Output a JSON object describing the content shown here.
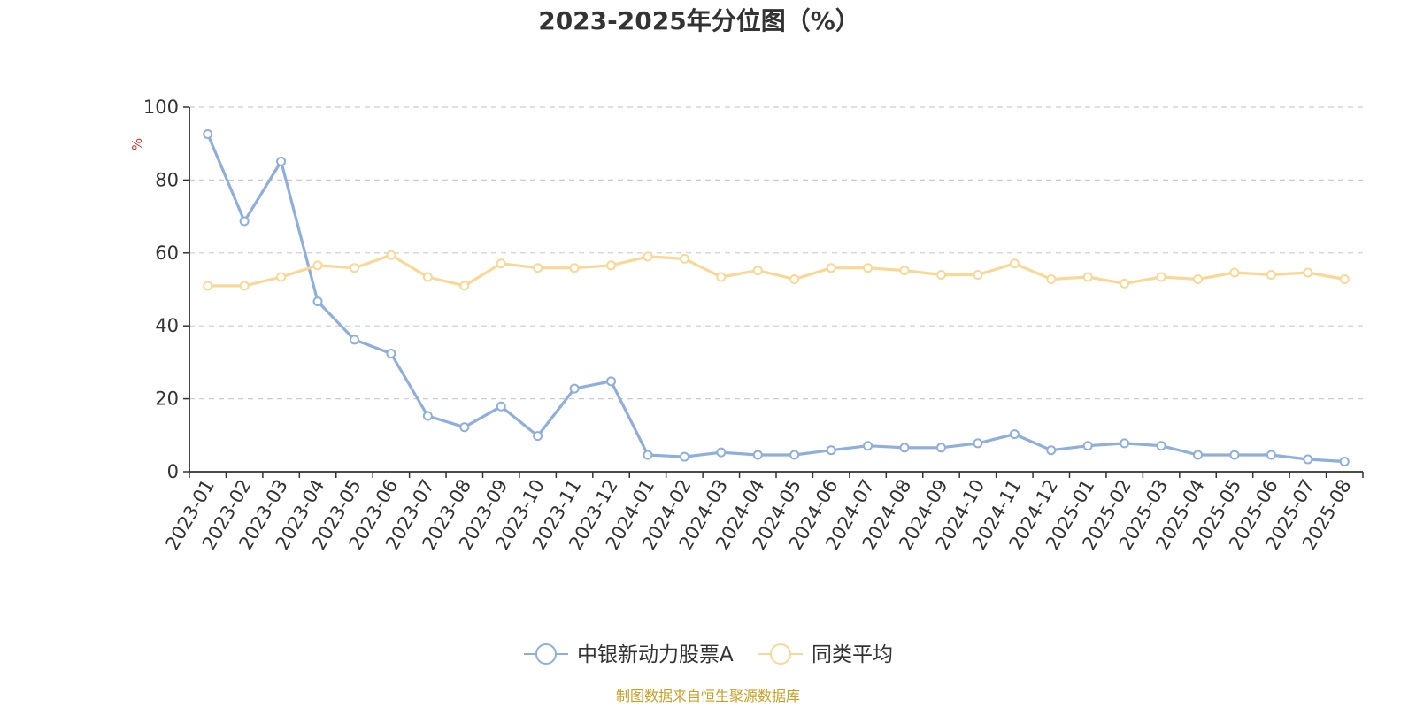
{
  "chart_data": {
    "type": "line",
    "title": "2023-2025年分位图（%）",
    "ylabel": "%",
    "ylim": [
      0,
      100
    ],
    "yticks": [
      0,
      20,
      40,
      60,
      80,
      100
    ],
    "grid": true,
    "legend_position": "bottom-center",
    "categories": [
      "2023-01",
      "2023-02",
      "2023-03",
      "2023-04",
      "2023-05",
      "2023-06",
      "2023-07",
      "2023-08",
      "2023-09",
      "2023-10",
      "2023-11",
      "2023-12",
      "2024-01",
      "2024-02",
      "2024-03",
      "2024-04",
      "2024-05",
      "2024-06",
      "2024-07",
      "2024-08",
      "2024-09",
      "2024-10",
      "2024-11",
      "2024-12",
      "2025-01",
      "2025-02",
      "2025-03",
      "2025-04",
      "2025-05",
      "2025-06",
      "2025-07",
      "2025-08"
    ],
    "series": [
      {
        "name": "中银新动力股票A",
        "color": "#8eaedb",
        "values": [
          92.6,
          68.7,
          85.1,
          46.7,
          36.2,
          32.4,
          15.3,
          12.2,
          17.9,
          9.8,
          22.8,
          24.8,
          4.6,
          4.1,
          5.3,
          4.6,
          4.6,
          5.9,
          7.1,
          6.6,
          6.6,
          7.8,
          10.3,
          5.9,
          7.1,
          7.8,
          7.1,
          4.6,
          4.6,
          4.6,
          3.4,
          2.8
        ]
      },
      {
        "name": "同类平均",
        "color": "#f9d895",
        "values": [
          51.0,
          51.0,
          53.4,
          56.6,
          55.9,
          59.4,
          53.4,
          51.0,
          57.1,
          55.9,
          55.9,
          56.6,
          59.0,
          58.4,
          53.4,
          55.2,
          52.8,
          55.9,
          55.9,
          55.2,
          54.0,
          54.0,
          57.1,
          52.8,
          53.4,
          51.6,
          53.4,
          52.8,
          54.6,
          54.0,
          54.6,
          52.8
        ]
      }
    ]
  },
  "source": {
    "text": "制图数据来自恒生聚源数据库",
    "color": "#c8a028"
  },
  "colors": {
    "unit_label": "#e03030",
    "axis": "#333333",
    "grid": "#cccccc"
  }
}
